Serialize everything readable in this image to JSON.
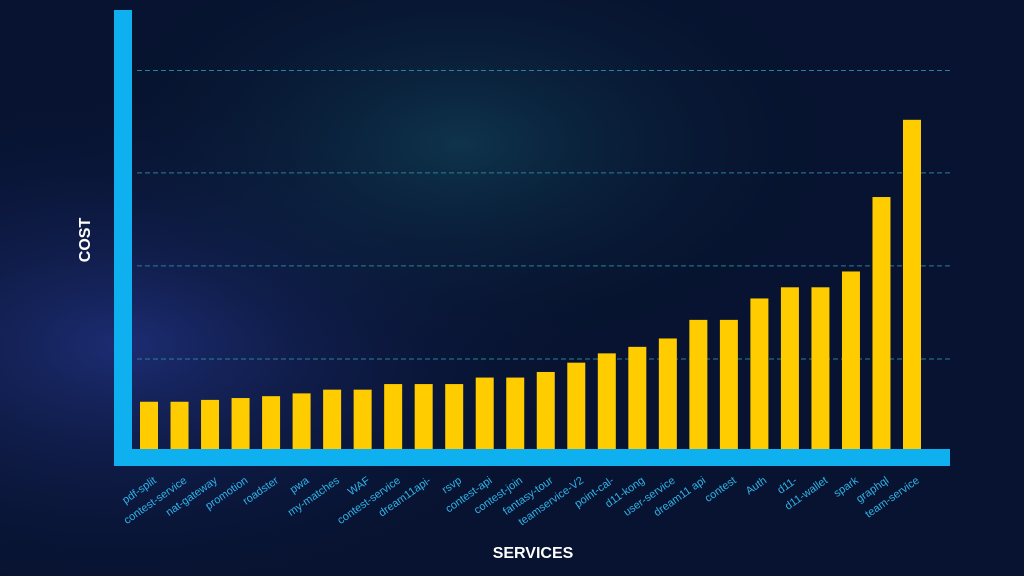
{
  "chart_data": {
    "type": "bar",
    "y_label": "COST",
    "x_label": "SERVICES",
    "categories": [
      "pdf-split",
      "contest-service",
      "nat-gateway",
      "promotion",
      "roadster",
      "pwa",
      "my-matches",
      "WAF",
      "contest-service",
      "dream11api-",
      "rsvp",
      "contest-api",
      "contest-join",
      "fantasy-tour",
      "teamservice-V2",
      "point-cal-",
      "d11-kong",
      "user-service",
      "dream11 api",
      "contest",
      "Auth",
      "d11-",
      "d11-wallet",
      "spark",
      "graphql",
      "team-service"
    ],
    "values": [
      0.54,
      0.54,
      0.56,
      0.58,
      0.6,
      0.63,
      0.67,
      0.67,
      0.73,
      0.73,
      0.73,
      0.8,
      0.8,
      0.86,
      0.96,
      1.06,
      1.13,
      1.22,
      1.42,
      1.42,
      1.65,
      1.77,
      1.77,
      1.94,
      2.74,
      3.57
    ],
    "color": "#ffcc00",
    "ylim": [
      0,
      4.75
    ],
    "yticks": [
      1,
      2,
      3,
      4.1
    ],
    "grid": true
  }
}
